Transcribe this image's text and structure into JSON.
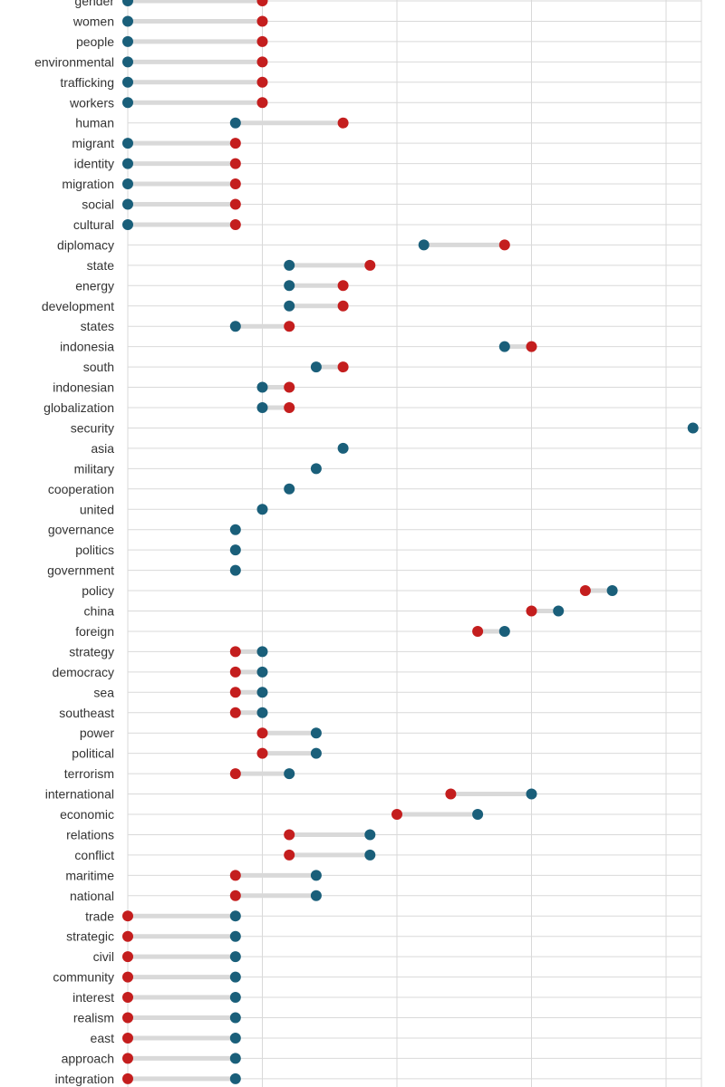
{
  "chart_data": {
    "type": "dumbbell",
    "title": "",
    "xlabel": "",
    "ylabel": "",
    "xlim": [
      0,
      21.5
    ],
    "grid": true,
    "colors": {
      "series_a": "#1a5f7a",
      "series_b": "#c41e1e",
      "connector": "#d9d9d9",
      "grid": "#d9d9d9",
      "label": "#333333"
    },
    "categories": [
      "gender",
      "women",
      "people",
      "environmental",
      "trafficking",
      "workers",
      "human",
      "migrant",
      "identity",
      "migration",
      "social",
      "cultural",
      "diplomacy",
      "state",
      "energy",
      "development",
      "states",
      "indonesia",
      "south",
      "indonesian",
      "globalization",
      "security",
      "asia",
      "military",
      "cooperation",
      "united",
      "governance",
      "politics",
      "government",
      "policy",
      "china",
      "foreign",
      "strategy",
      "democracy",
      "sea",
      "southeast",
      "power",
      "political",
      "terrorism",
      "international",
      "economic",
      "relations",
      "conflict",
      "maritime",
      "national",
      "trade",
      "strategic",
      "civil",
      "community",
      "interest",
      "realism",
      "east",
      "approach",
      "integration"
    ],
    "series": [
      {
        "values": [
          0,
          0,
          0,
          0,
          0,
          0,
          4,
          0,
          0,
          0,
          0,
          0,
          11,
          6,
          6,
          6,
          4,
          14,
          7,
          5,
          5,
          21,
          8,
          7,
          6,
          5,
          4,
          4,
          4,
          18,
          16,
          14,
          5,
          5,
          5,
          5,
          7,
          7,
          6,
          15,
          13,
          9,
          9,
          7,
          7,
          4,
          4,
          4,
          4,
          4,
          4,
          4,
          4,
          4
        ]
      },
      {
        "values": [
          5,
          5,
          5,
          5,
          5,
          5,
          8,
          4,
          4,
          4,
          4,
          4,
          14,
          9,
          8,
          8,
          6,
          15,
          8,
          6,
          6,
          null,
          null,
          null,
          null,
          null,
          null,
          null,
          null,
          17,
          15,
          13,
          4,
          4,
          4,
          4,
          5,
          5,
          4,
          12,
          10,
          6,
          6,
          4,
          4,
          0,
          0,
          0,
          0,
          0,
          0,
          0,
          0,
          0
        ]
      }
    ]
  }
}
